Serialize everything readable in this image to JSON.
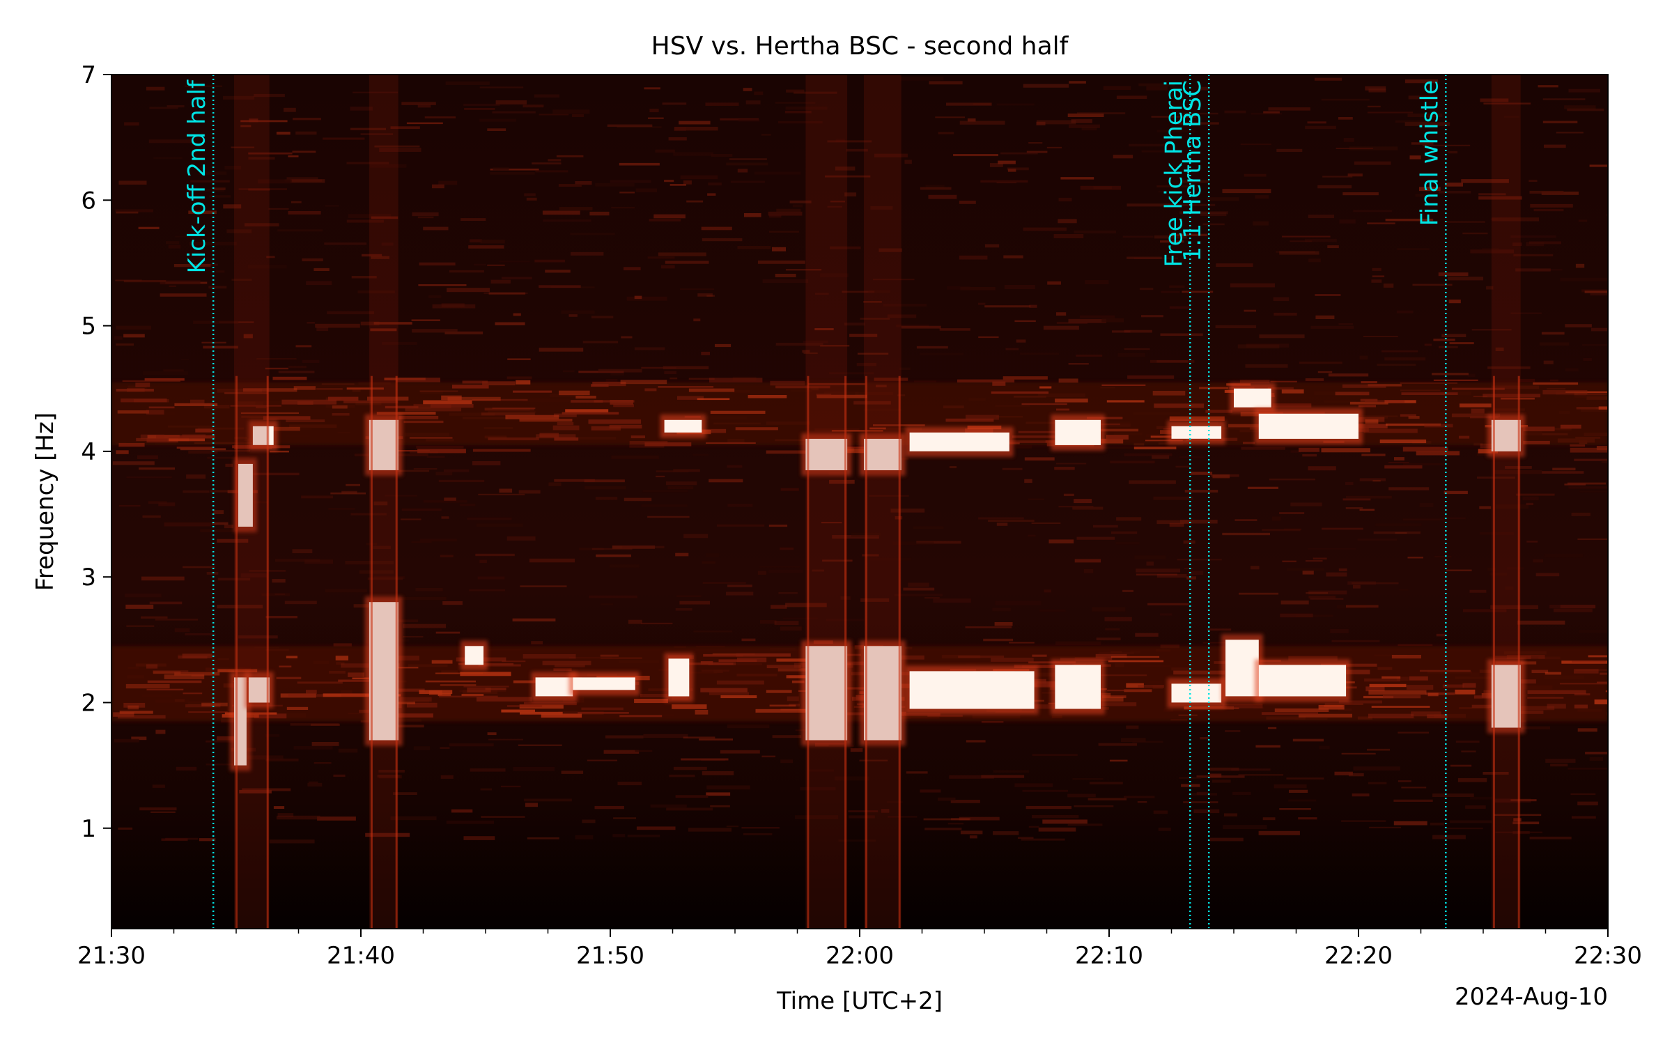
{
  "chart_data": {
    "type": "heatmap",
    "title": "HSV vs. Hertha BSC - second half",
    "xlabel": "Time [UTC+2]",
    "ylabel": "Frequency [Hz]",
    "date_label": "2024-Aug-10",
    "xlim": [
      "21:30",
      "22:30"
    ],
    "ylim": [
      0.2,
      7
    ],
    "x_ticks": [
      "21:30",
      "21:40",
      "21:50",
      "22:00",
      "22:10",
      "22:20",
      "22:30"
    ],
    "y_ticks": [
      1,
      2,
      3,
      4,
      5,
      6,
      7
    ],
    "colormap": "black-red-white",
    "annotations": [
      {
        "time": "21:34:05",
        "label": "Kick-off 2nd half"
      },
      {
        "time": "22:13:15",
        "label": "Free kick Pherai"
      },
      {
        "time": "22:14:00",
        "label": "1:1 Hertha BSC"
      },
      {
        "time": "22:23:30",
        "label": "Final whistle"
      }
    ],
    "intense_regions": [
      {
        "t0": "21:34:55",
        "t1": "21:35:25",
        "f0": 1.5,
        "f1": 2.2
      },
      {
        "t0": "21:35:05",
        "t1": "21:35:40",
        "f0": 3.4,
        "f1": 3.9
      },
      {
        "t0": "21:35:30",
        "t1": "21:36:20",
        "f0": 2.0,
        "f1": 2.2
      },
      {
        "t0": "21:35:40",
        "t1": "21:36:30",
        "f0": 4.05,
        "f1": 4.2
      },
      {
        "t0": "21:40:20",
        "t1": "21:41:30",
        "f0": 1.7,
        "f1": 2.8
      },
      {
        "t0": "21:40:20",
        "t1": "21:41:30",
        "f0": 3.85,
        "f1": 4.25
      },
      {
        "t0": "21:44:10",
        "t1": "21:44:55",
        "f0": 2.3,
        "f1": 2.45
      },
      {
        "t0": "21:47:00",
        "t1": "21:48:30",
        "f0": 2.05,
        "f1": 2.2
      },
      {
        "t0": "21:48:30",
        "t1": "21:51:00",
        "f0": 2.1,
        "f1": 2.2
      },
      {
        "t0": "21:52:10",
        "t1": "21:53:40",
        "f0": 4.15,
        "f1": 4.25
      },
      {
        "t0": "21:52:20",
        "t1": "21:53:10",
        "f0": 2.05,
        "f1": 2.35
      },
      {
        "t0": "21:57:50",
        "t1": "21:59:30",
        "f0": 1.7,
        "f1": 2.45
      },
      {
        "t0": "21:57:50",
        "t1": "21:59:30",
        "f0": 3.85,
        "f1": 4.1
      },
      {
        "t0": "22:00:10",
        "t1": "22:01:40",
        "f0": 1.7,
        "f1": 2.45
      },
      {
        "t0": "22:00:10",
        "t1": "22:01:40",
        "f0": 3.85,
        "f1": 4.1
      },
      {
        "t0": "22:02:00",
        "t1": "22:07:00",
        "f0": 1.95,
        "f1": 2.25
      },
      {
        "t0": "22:02:00",
        "t1": "22:06:00",
        "f0": 4.0,
        "f1": 4.15
      },
      {
        "t0": "22:07:50",
        "t1": "22:09:40",
        "f0": 1.95,
        "f1": 2.3
      },
      {
        "t0": "22:07:50",
        "t1": "22:09:40",
        "f0": 4.05,
        "f1": 4.25
      },
      {
        "t0": "22:12:30",
        "t1": "22:14:30",
        "f0": 2.0,
        "f1": 2.15
      },
      {
        "t0": "22:12:30",
        "t1": "22:14:30",
        "f0": 4.1,
        "f1": 4.2
      },
      {
        "t0": "22:14:40",
        "t1": "22:16:00",
        "f0": 2.05,
        "f1": 2.5
      },
      {
        "t0": "22:15:00",
        "t1": "22:16:30",
        "f0": 4.35,
        "f1": 4.5
      },
      {
        "t0": "22:16:00",
        "t1": "22:20:00",
        "f0": 4.1,
        "f1": 4.3
      },
      {
        "t0": "22:16:00",
        "t1": "22:19:30",
        "f0": 2.05,
        "f1": 2.3
      },
      {
        "t0": "22:25:20",
        "t1": "22:26:30",
        "f0": 1.8,
        "f1": 2.3
      },
      {
        "t0": "22:25:20",
        "t1": "22:26:30",
        "f0": 4.0,
        "f1": 4.25
      }
    ]
  }
}
